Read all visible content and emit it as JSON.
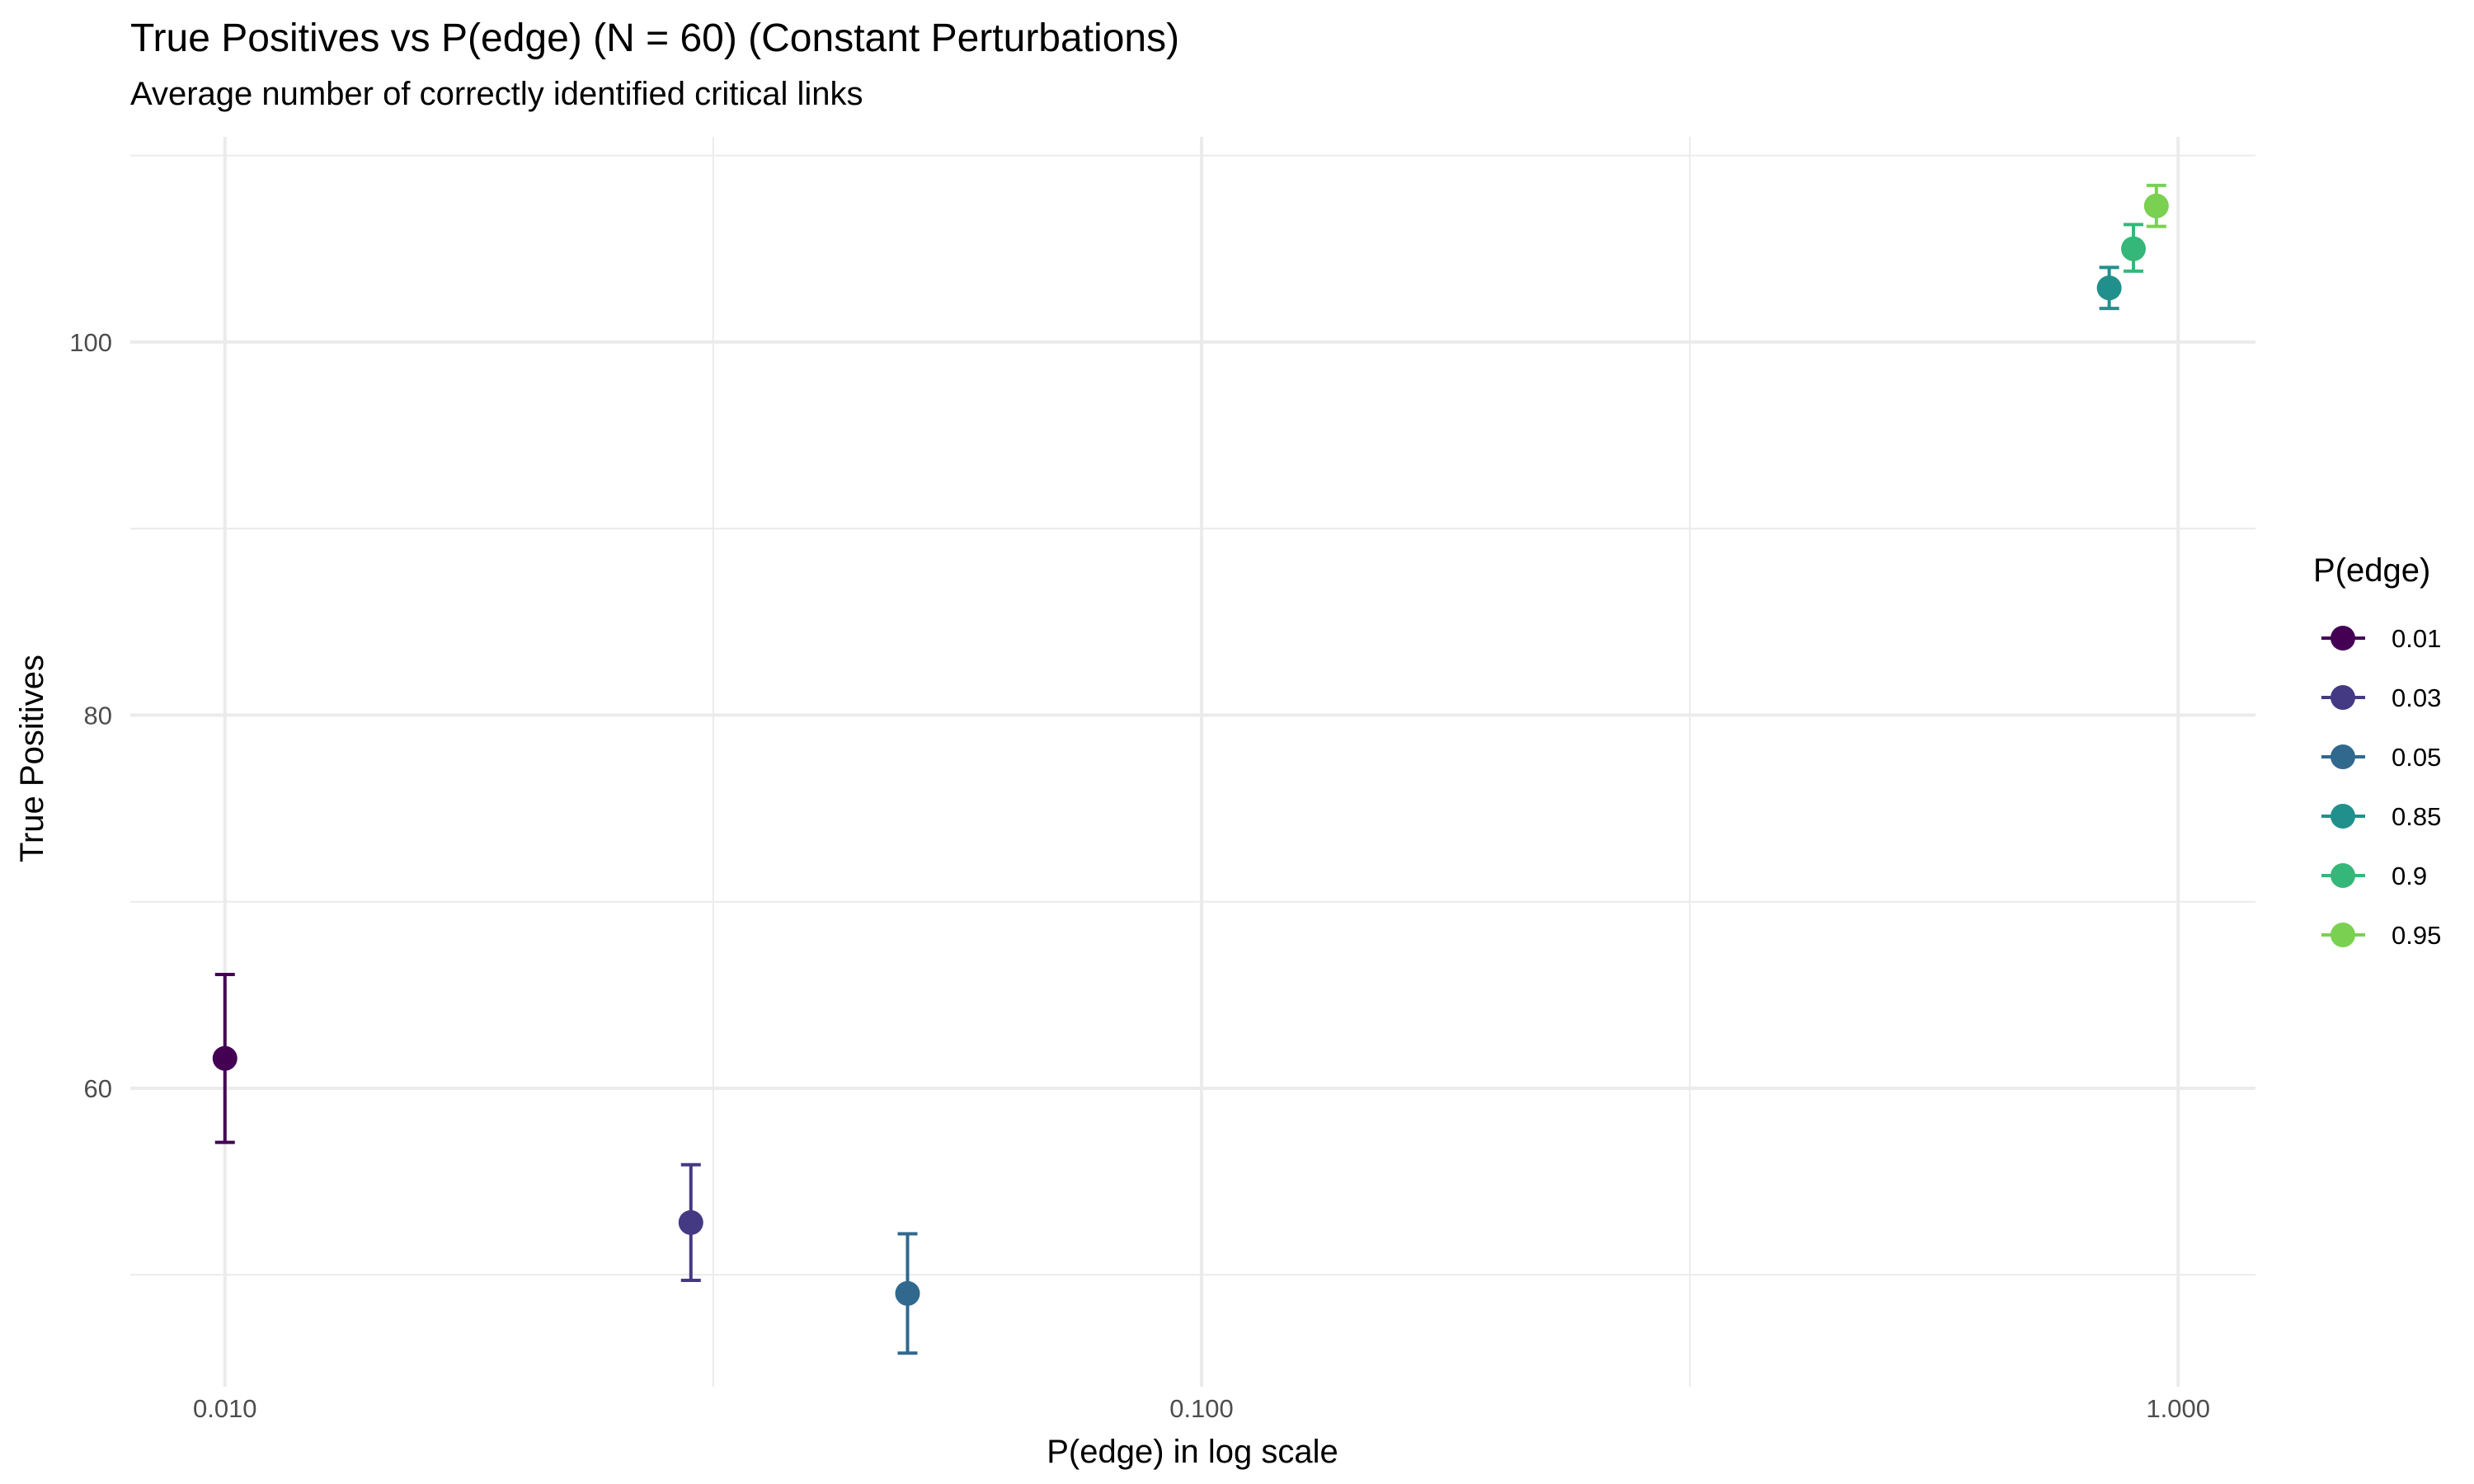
{
  "chart_data": {
    "type": "scatter",
    "title": "True Positives vs P(edge) (N = 60) (Constant Perturbations)",
    "subtitle": "Average number of correctly identified critical links",
    "xlabel": "P(edge) in log scale",
    "ylabel": "True Positives",
    "x_scale": "log10",
    "xlim": [
      0.008,
      1.2
    ],
    "ylim": [
      44,
      111
    ],
    "x_ticks": [
      0.01,
      0.1,
      1.0
    ],
    "x_tick_labels": [
      "0.010",
      "0.100",
      "1.000"
    ],
    "y_ticks": [
      60,
      80,
      100
    ],
    "y_tick_labels": [
      "60",
      "80",
      "100"
    ],
    "grid": true,
    "legend_title": "P(edge)",
    "legend_position": "right",
    "error_bars": true,
    "series": [
      {
        "name": "0.01",
        "x": 0.01,
        "y": 61.6,
        "ymin": 57.1,
        "ymax": 66.1,
        "color": "#440154"
      },
      {
        "name": "0.03",
        "x": 0.03,
        "y": 52.8,
        "ymin": 49.7,
        "ymax": 55.9,
        "color": "#443A83"
      },
      {
        "name": "0.05",
        "x": 0.05,
        "y": 49.0,
        "ymin": 45.8,
        "ymax": 52.2,
        "color": "#31688E"
      },
      {
        "name": "0.85",
        "x": 0.85,
        "y": 102.9,
        "ymin": 101.8,
        "ymax": 104.0,
        "color": "#21908C"
      },
      {
        "name": "0.9",
        "x": 0.9,
        "y": 105.0,
        "ymin": 103.8,
        "ymax": 106.3,
        "color": "#35B779"
      },
      {
        "name": "0.95",
        "x": 0.95,
        "y": 107.3,
        "ymin": 106.2,
        "ymax": 108.4,
        "color": "#7AD151"
      }
    ]
  }
}
